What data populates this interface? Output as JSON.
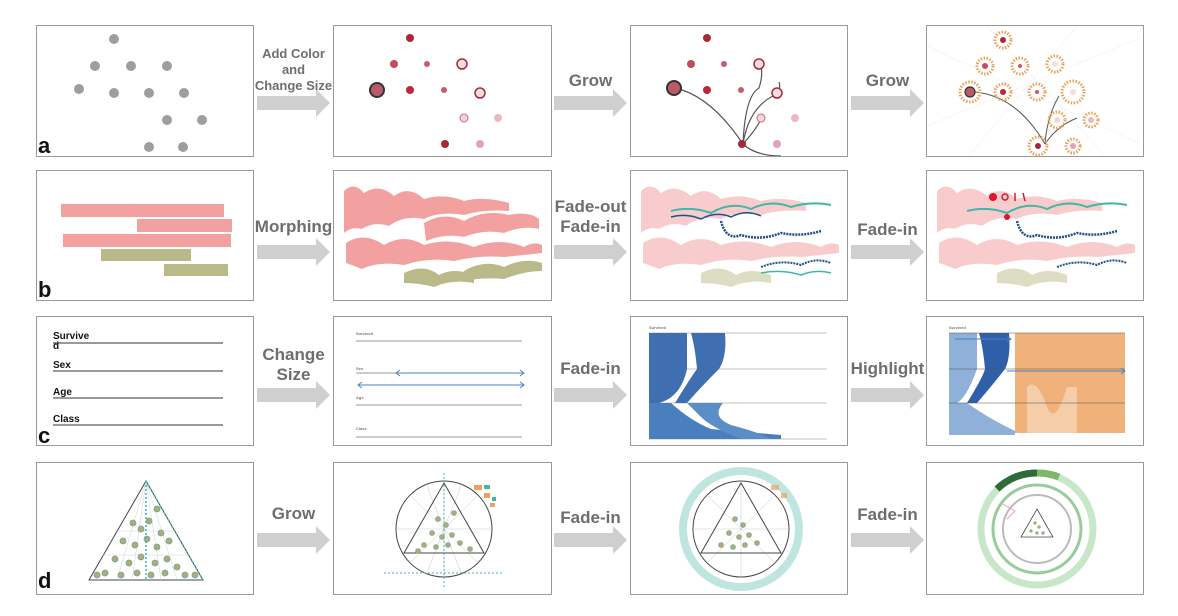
{
  "rows": [
    {
      "label": "a",
      "steps": [
        "Add Color\nand\nChange Size",
        "Grow",
        "Grow"
      ]
    },
    {
      "label": "b",
      "steps": [
        "Morphing",
        "Fade-out\nFade-in",
        "Fade-in"
      ]
    },
    {
      "label": "c",
      "steps": [
        "Change\nSize",
        "Fade-in",
        "Highlight"
      ]
    },
    {
      "label": "d",
      "steps": [
        "Grow",
        "Fade-in",
        "Fade-in"
      ]
    }
  ],
  "row_c_axes": {
    "first_panel": [
      "Survive\nd",
      "Sex",
      "Age",
      "Class"
    ],
    "second_panel": [
      "Survived",
      "Sex",
      "Age",
      "Class"
    ],
    "third_panel": [
      "Survived"
    ],
    "fourth_panel": [
      "Survived"
    ]
  },
  "colors": {
    "panel_border": "#9a9a9a",
    "arrow": "#cfcfcf",
    "arrow_text": "#6e6e6e",
    "gray_dot": "#9e9e9e",
    "dark_red": "#a8283a",
    "pink": "#f2a0a0",
    "olive": "#b9b98a",
    "teal": "#3fb8a8",
    "navy": "#1f4f8a",
    "steel_blue": "#4a7fbf",
    "orange": "#f0b27a"
  }
}
